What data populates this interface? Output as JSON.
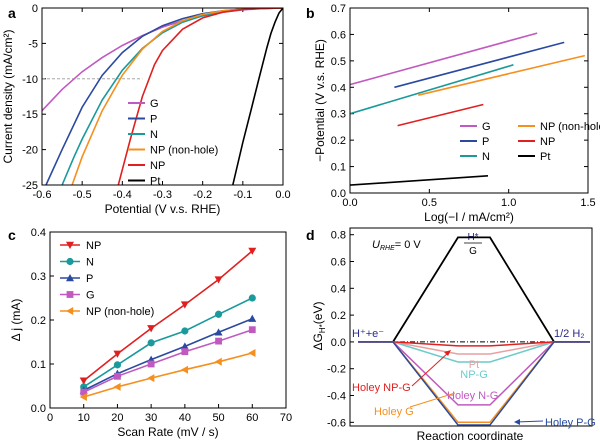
{
  "panels": {
    "a": {
      "label": "a"
    },
    "b": {
      "label": "b"
    },
    "c": {
      "label": "c"
    },
    "d": {
      "label": "d"
    }
  },
  "colors": {
    "G": "#c05ac0",
    "P": "#2a4aa0",
    "N": "#1a9a9a",
    "NP_nonhole": "#f5901e",
    "NP": "#e02020",
    "Pt": "#000000"
  },
  "chart_data": [
    {
      "id": "a",
      "type": "line",
      "xlabel": "Potential (V v.s. RHE)",
      "ylabel": "Current density (mA/cm²)",
      "xlim": [
        -0.6,
        0.0
      ],
      "ylim": [
        -25,
        0
      ],
      "xticks": [
        "-0.6",
        "-0.5",
        "-0.4",
        "-0.3",
        "-0.2",
        "-0.1",
        "0.0"
      ],
      "yticks": [
        "0",
        "-5",
        "-10",
        "-15",
        "-20",
        "-25"
      ],
      "reference_line": {
        "y": -10,
        "style": "dashed"
      },
      "legend_position": "bottom-left",
      "series": [
        {
          "name": "G",
          "key": "G",
          "x": [
            -0.6,
            -0.55,
            -0.5,
            -0.45,
            -0.4,
            -0.35,
            -0.3,
            -0.25,
            -0.2,
            -0.15,
            -0.1,
            -0.05,
            0.0
          ],
          "y": [
            -14.5,
            -11.5,
            -9.0,
            -7.0,
            -5.3,
            -3.9,
            -2.7,
            -1.8,
            -1.1,
            -0.6,
            -0.25,
            -0.08,
            0.0
          ]
        },
        {
          "name": "P",
          "key": "P",
          "x": [
            -0.59,
            -0.55,
            -0.5,
            -0.45,
            -0.4,
            -0.35,
            -0.3,
            -0.25,
            -0.2,
            -0.15,
            -0.1,
            -0.05,
            0.0
          ],
          "y": [
            -25,
            -20.0,
            -14.0,
            -9.5,
            -6.3,
            -4.0,
            -2.5,
            -1.5,
            -0.8,
            -0.4,
            -0.15,
            -0.05,
            0.0
          ]
        },
        {
          "name": "N",
          "key": "N",
          "x": [
            -0.55,
            -0.52,
            -0.5,
            -0.45,
            -0.4,
            -0.35,
            -0.3,
            -0.25,
            -0.2,
            -0.15,
            -0.1,
            -0.05,
            0.0
          ],
          "y": [
            -25,
            -21.0,
            -18.5,
            -13.0,
            -8.8,
            -5.7,
            -3.5,
            -2.0,
            -1.1,
            -0.55,
            -0.2,
            -0.06,
            0.0
          ]
        },
        {
          "name": "NP (non-hole)",
          "key": "NP_nonhole",
          "x": [
            -0.525,
            -0.5,
            -0.45,
            -0.4,
            -0.35,
            -0.3,
            -0.25,
            -0.2,
            -0.15,
            -0.1,
            -0.05,
            0.0
          ],
          "y": [
            -25,
            -21.0,
            -14.5,
            -9.5,
            -5.8,
            -3.3,
            -1.8,
            -0.9,
            -0.4,
            -0.15,
            -0.05,
            0.0
          ]
        },
        {
          "name": "NP",
          "key": "NP",
          "x": [
            -0.41,
            -0.38,
            -0.35,
            -0.32,
            -0.3,
            -0.25,
            -0.2,
            -0.15,
            -0.1,
            -0.05,
            0.0
          ],
          "y": [
            -25,
            -18.5,
            -12.5,
            -8.0,
            -6.0,
            -3.0,
            -1.4,
            -0.6,
            -0.2,
            -0.05,
            0.0
          ]
        },
        {
          "name": "Pt",
          "key": "Pt",
          "x": [
            -0.125,
            -0.1,
            -0.08,
            -0.06,
            -0.05,
            -0.04,
            -0.03,
            -0.02,
            -0.01,
            0.0
          ],
          "y": [
            -25,
            -19.0,
            -14.5,
            -10.0,
            -7.8,
            -5.6,
            -3.6,
            -2.0,
            -0.7,
            0.0
          ]
        }
      ]
    },
    {
      "id": "b",
      "type": "line",
      "xlabel": "Log(−I / mA/cm²)",
      "ylabel": "−Potential (V v.s. RHE)",
      "xlim": [
        0.0,
        1.5
      ],
      "ylim": [
        0.0,
        0.7
      ],
      "xticks": [
        "0.0",
        "0.5",
        "1.0",
        "1.5"
      ],
      "yticks": [
        "0.0",
        "0.1",
        "0.2",
        "0.3",
        "0.4",
        "0.5",
        "0.6",
        "0.7"
      ],
      "legend_position": "bottom-right",
      "series": [
        {
          "name": "G",
          "key": "G",
          "x": [
            0.0,
            1.18
          ],
          "y": [
            0.41,
            0.605
          ]
        },
        {
          "name": "P",
          "key": "P",
          "x": [
            0.28,
            1.35
          ],
          "y": [
            0.4,
            0.57
          ]
        },
        {
          "name": "N",
          "key": "N",
          "x": [
            0.0,
            1.03
          ],
          "y": [
            0.3,
            0.485
          ]
        },
        {
          "name": "NP (non-hole)",
          "key": "NP_nonhole",
          "x": [
            0.43,
            1.48
          ],
          "y": [
            0.37,
            0.52
          ]
        },
        {
          "name": "NP",
          "key": "NP",
          "x": [
            0.3,
            0.84
          ],
          "y": [
            0.255,
            0.335
          ]
        },
        {
          "name": "Pt",
          "key": "Pt",
          "x": [
            0.0,
            0.87
          ],
          "y": [
            0.03,
            0.065
          ]
        }
      ]
    },
    {
      "id": "c",
      "type": "line",
      "xlabel": "Scan Rate (mV / s)",
      "ylabel": "Δ j (mA)",
      "xlim": [
        0,
        70
      ],
      "ylim": [
        0.0,
        0.4
      ],
      "xticks": [
        "0",
        "10",
        "20",
        "30",
        "40",
        "50",
        "60",
        "70"
      ],
      "yticks": [
        "0.0",
        "0.1",
        "0.2",
        "0.3",
        "0.4"
      ],
      "legend_position": "top-left",
      "series": [
        {
          "name": "NP",
          "key": "NP",
          "marker": "triangle-down",
          "x": [
            10,
            20,
            30,
            40,
            50,
            60
          ],
          "y": [
            0.062,
            0.123,
            0.181,
            0.235,
            0.292,
            0.357
          ]
        },
        {
          "name": "N",
          "key": "N",
          "marker": "circle",
          "x": [
            10,
            20,
            30,
            40,
            50,
            60
          ],
          "y": [
            0.048,
            0.098,
            0.148,
            0.175,
            0.213,
            0.25
          ]
        },
        {
          "name": "P",
          "key": "P",
          "marker": "triangle-up",
          "x": [
            10,
            20,
            30,
            40,
            50,
            60
          ],
          "y": [
            0.04,
            0.078,
            0.11,
            0.14,
            0.172,
            0.203
          ]
        },
        {
          "name": "G",
          "key": "G",
          "marker": "square",
          "x": [
            10,
            20,
            30,
            40,
            50,
            60
          ],
          "y": [
            0.036,
            0.072,
            0.1,
            0.128,
            0.152,
            0.178
          ]
        },
        {
          "name": "NP (non-hole)",
          "key": "NP_nonhole",
          "marker": "triangle-left",
          "x": [
            10,
            20,
            30,
            40,
            50,
            60
          ],
          "y": [
            0.025,
            0.048,
            0.068,
            0.087,
            0.105,
            0.125
          ]
        }
      ]
    },
    {
      "id": "d",
      "type": "line",
      "xlabel": "Reaction coordinate",
      "ylabel": "ΔG",
      "ylabel_sub": "H*",
      "ylabel_unit": "(eV)",
      "ylim": [
        -0.62,
        0.85
      ],
      "yticks": [
        "0.8",
        "0.6",
        "0.4",
        "0.2",
        "0.0",
        "-0.2",
        "-0.4",
        "-0.6"
      ],
      "condition": {
        "main": "U",
        "sub": "RHE",
        "rest": "= 0 V"
      },
      "state_labels": {
        "left": "H⁺+e⁻",
        "right": "1/2 H₂",
        "top_num": "H*",
        "top_den": "G"
      },
      "series": [
        {
          "name": "G",
          "key": "Pt",
          "y": 0.78,
          "label": ""
        },
        {
          "name": "Pt",
          "key": "Pt_level",
          "y": -0.09,
          "label": "Pt"
        },
        {
          "name": "NP-G",
          "key": "N",
          "y": -0.15,
          "label": "NP-G"
        },
        {
          "name": "Holey NP-G",
          "key": "NP",
          "y": -0.03,
          "label": "Holey NP-G"
        },
        {
          "name": "Holey N-G",
          "key": "G",
          "y": -0.47,
          "label": "Holey N-G"
        },
        {
          "name": "Holey G",
          "key": "NP_nonhole",
          "y": -0.6,
          "label": "Holey G"
        },
        {
          "name": "Holey P-G",
          "key": "P",
          "y": -0.62,
          "label": "Holey P-G"
        }
      ]
    }
  ]
}
